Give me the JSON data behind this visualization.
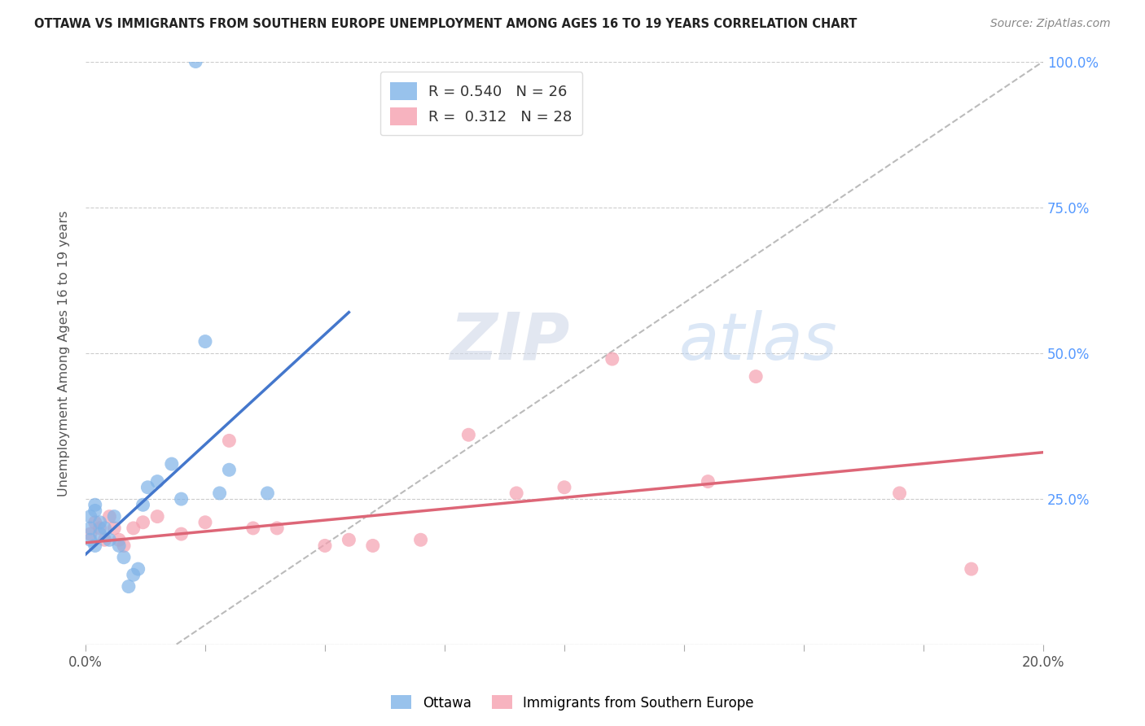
{
  "title": "OTTAWA VS IMMIGRANTS FROM SOUTHERN EUROPE UNEMPLOYMENT AMONG AGES 16 TO 19 YEARS CORRELATION CHART",
  "source": "Source: ZipAtlas.com",
  "ylabel": "Unemployment Among Ages 16 to 19 years",
  "background_color": "#ffffff",
  "grid_color": "#cccccc",
  "watermark_zip": "ZIP",
  "watermark_atlas": "atlas",
  "legend_labels": [
    "Ottawa",
    "Immigrants from Southern Europe"
  ],
  "ottawa_R": 0.54,
  "ottawa_N": 26,
  "imm_R": 0.312,
  "imm_N": 28,
  "ottawa_color": "#7fb3e8",
  "imm_color": "#f5a0b0",
  "xlim": [
    0.0,
    0.2
  ],
  "ylim": [
    0.0,
    1.0
  ],
  "ottawa_x": [
    0.001,
    0.001,
    0.001,
    0.002,
    0.002,
    0.002,
    0.003,
    0.003,
    0.004,
    0.005,
    0.006,
    0.007,
    0.008,
    0.009,
    0.01,
    0.011,
    0.012,
    0.013,
    0.015,
    0.018,
    0.02,
    0.025,
    0.028,
    0.03,
    0.038,
    0.023
  ],
  "ottawa_y": [
    0.18,
    0.2,
    0.22,
    0.17,
    0.23,
    0.24,
    0.19,
    0.21,
    0.2,
    0.18,
    0.22,
    0.17,
    0.15,
    0.1,
    0.12,
    0.13,
    0.24,
    0.27,
    0.28,
    0.31,
    0.25,
    0.52,
    0.26,
    0.3,
    0.26,
    1.0
  ],
  "imm_x": [
    0.001,
    0.002,
    0.003,
    0.004,
    0.005,
    0.006,
    0.007,
    0.008,
    0.01,
    0.012,
    0.015,
    0.02,
    0.025,
    0.03,
    0.035,
    0.04,
    0.05,
    0.055,
    0.06,
    0.07,
    0.08,
    0.09,
    0.1,
    0.11,
    0.13,
    0.14,
    0.17,
    0.185
  ],
  "imm_y": [
    0.19,
    0.21,
    0.2,
    0.18,
    0.22,
    0.2,
    0.18,
    0.17,
    0.2,
    0.21,
    0.22,
    0.19,
    0.21,
    0.35,
    0.2,
    0.2,
    0.17,
    0.18,
    0.17,
    0.18,
    0.36,
    0.26,
    0.27,
    0.49,
    0.28,
    0.46,
    0.26,
    0.13
  ],
  "ottawa_trend_x": [
    0.0,
    0.055
  ],
  "ottawa_trend_y": [
    0.155,
    0.57
  ],
  "imm_trend_x": [
    0.0,
    0.2
  ],
  "imm_trend_y": [
    0.175,
    0.33
  ],
  "refline_x": [
    0.019,
    0.2
  ],
  "refline_y": [
    0.001,
    1.0
  ]
}
